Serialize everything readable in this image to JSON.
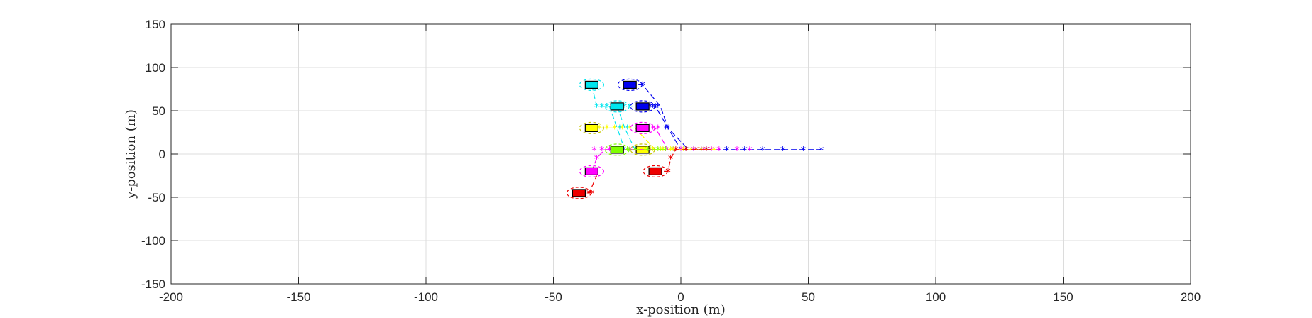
{
  "chart_data": {
    "type": "scatter",
    "title": "",
    "xlabel": "x-position (m)",
    "ylabel": "y-position (m)",
    "xlim": [
      -200,
      200
    ],
    "ylim": [
      -150,
      150
    ],
    "grid": true,
    "xticks": [
      -200,
      -150,
      -100,
      -50,
      0,
      50,
      100,
      150,
      200
    ],
    "yticks": [
      -150,
      -100,
      -50,
      0,
      50,
      100,
      150
    ],
    "xtick_labels": [
      "-200",
      "-150",
      "-100",
      "-50",
      "0",
      "50",
      "100",
      "150",
      "200"
    ],
    "ytick_labels": [
      "-150",
      "-100",
      "-50",
      "0",
      "50",
      "100",
      "150"
    ],
    "vehicles": [
      {
        "color": "#00e5ee",
        "x": -35,
        "y": 80,
        "path": [
          [
            -35,
            80
          ],
          [
            -33,
            55
          ],
          [
            -28,
            55
          ],
          [
            -25,
            30
          ],
          [
            -22,
            5
          ]
        ],
        "stars": [
          [
            -33,
            55
          ],
          [
            -31,
            55
          ],
          [
            -29,
            55
          ],
          [
            -27,
            55
          ],
          [
            -24,
            30
          ],
          [
            -23,
            5
          ],
          [
            -20,
            5
          ],
          [
            -17,
            5
          ],
          [
            -14,
            5
          ]
        ]
      },
      {
        "color": "#0000ee",
        "x": -20,
        "y": 80,
        "path": [
          [
            -20,
            80
          ],
          [
            -15,
            80
          ],
          [
            -8,
            55
          ],
          [
            -5,
            30
          ],
          [
            3,
            5
          ],
          [
            10,
            5
          ],
          [
            25,
            5
          ],
          [
            55,
            5
          ]
        ],
        "stars": [
          [
            -15,
            80
          ],
          [
            -12,
            55
          ],
          [
            -10,
            55
          ],
          [
            -5,
            30
          ],
          [
            -3,
            5
          ],
          [
            5,
            5
          ],
          [
            10,
            5
          ],
          [
            18,
            5
          ],
          [
            25,
            5
          ],
          [
            32,
            5
          ],
          [
            40,
            5
          ],
          [
            48,
            5
          ],
          [
            55,
            5
          ]
        ]
      },
      {
        "color": "#00e5ee",
        "x": -25,
        "y": 55,
        "path": [
          [
            -25,
            55
          ],
          [
            -22,
            30
          ],
          [
            -18,
            5
          ],
          [
            -10,
            5
          ]
        ],
        "stars": [
          [
            -22,
            55
          ],
          [
            -20,
            55
          ],
          [
            -21,
            30
          ],
          [
            -17,
            5
          ],
          [
            -12,
            5
          ],
          [
            -8,
            5
          ]
        ]
      },
      {
        "color": "#0000ee",
        "x": -15,
        "y": 55,
        "path": [
          [
            -15,
            55
          ],
          [
            -10,
            55
          ],
          [
            -5,
            30
          ],
          [
            0,
            5
          ],
          [
            8,
            5
          ]
        ],
        "stars": [
          [
            -11,
            55
          ],
          [
            -9,
            55
          ],
          [
            -6,
            30
          ],
          [
            2,
            5
          ],
          [
            8,
            5
          ]
        ]
      },
      {
        "color": "#ffff00",
        "x": -35,
        "y": 30,
        "path": [
          [
            -35,
            30
          ],
          [
            -25,
            30
          ],
          [
            -18,
            30
          ],
          [
            -10,
            5
          ],
          [
            0,
            5
          ]
        ],
        "stars": [
          [
            -37,
            30
          ],
          [
            -32,
            30
          ],
          [
            -29,
            30
          ],
          [
            -26,
            30
          ],
          [
            -23,
            30
          ],
          [
            -20,
            30
          ],
          [
            -17,
            30
          ],
          [
            -12,
            5
          ],
          [
            -8,
            5
          ],
          [
            -4,
            5
          ]
        ]
      },
      {
        "color": "#ff00ff",
        "x": -15,
        "y": 30,
        "path": [
          [
            -15,
            30
          ],
          [
            -10,
            30
          ],
          [
            -5,
            5
          ],
          [
            5,
            5
          ],
          [
            15,
            5
          ]
        ],
        "stars": [
          [
            -11,
            30
          ],
          [
            -9,
            30
          ],
          [
            -6,
            5
          ],
          [
            0,
            5
          ],
          [
            5,
            5
          ],
          [
            9,
            5
          ],
          [
            12,
            5
          ],
          [
            15,
            5
          ],
          [
            22,
            5
          ],
          [
            27,
            5
          ]
        ]
      },
      {
        "color": "#ffff00",
        "x": -15,
        "y": 5,
        "path": [
          [
            -15,
            5
          ],
          [
            -5,
            5
          ],
          [
            5,
            5
          ],
          [
            15,
            5
          ]
        ],
        "stars": [
          [
            -11,
            5
          ],
          [
            -7,
            5
          ],
          [
            -3,
            5
          ],
          [
            1,
            5
          ],
          [
            4,
            5
          ],
          [
            8,
            5
          ],
          [
            13,
            5
          ]
        ]
      },
      {
        "color": "#ff00ff",
        "x": -35,
        "y": -20,
        "path": [
          [
            -35,
            -20
          ],
          [
            -33,
            -5
          ],
          [
            -30,
            5
          ],
          [
            -20,
            5
          ],
          [
            -10,
            5
          ]
        ],
        "stars": [
          [
            -33,
            -5
          ],
          [
            -34,
            5
          ],
          [
            -31,
            5
          ],
          [
            -28,
            5
          ],
          [
            -26,
            5
          ],
          [
            -23,
            5
          ],
          [
            -20,
            5
          ]
        ]
      },
      {
        "color": "#ee0000",
        "x": -10,
        "y": -20,
        "path": [
          [
            -10,
            -20
          ],
          [
            -5,
            -20
          ],
          [
            -4,
            -5
          ],
          [
            -2,
            5
          ],
          [
            5,
            5
          ],
          [
            12,
            5
          ]
        ],
        "stars": [
          [
            -5,
            -20
          ],
          [
            -4,
            -5
          ],
          [
            -2,
            5
          ],
          [
            2,
            5
          ],
          [
            6,
            5
          ],
          [
            10,
            5
          ]
        ]
      },
      {
        "color": "#ee0000",
        "x": -40,
        "y": -45,
        "path": [
          [
            -40,
            -45
          ],
          [
            -36,
            -45
          ],
          [
            -33,
            -25
          ]
        ],
        "stars": [
          [
            -36,
            -45
          ],
          [
            -35,
            -45
          ]
        ]
      },
      {
        "color": "#7fff00",
        "x": -25,
        "y": 5,
        "path": [
          [
            -25,
            5
          ],
          [
            -15,
            5
          ],
          [
            -5,
            5
          ]
        ],
        "stars": [
          [
            -27,
            5
          ],
          [
            -24,
            5
          ],
          [
            -21,
            5
          ],
          [
            -18,
            5
          ],
          [
            -13,
            5
          ],
          [
            -9,
            5
          ],
          [
            -6,
            5
          ]
        ]
      }
    ]
  }
}
